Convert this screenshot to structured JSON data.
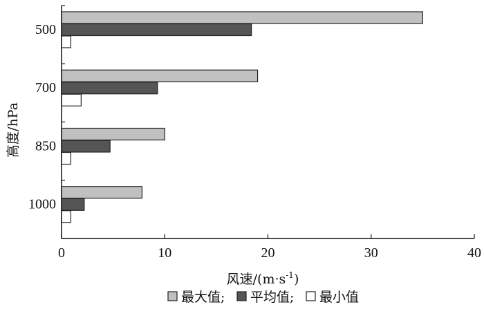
{
  "chart_data": {
    "type": "bar",
    "orientation": "horizontal",
    "categories": [
      "500",
      "700",
      "850",
      "1000"
    ],
    "series": [
      {
        "name": "最大值",
        "values": [
          35,
          19,
          10,
          7.8
        ],
        "color": "#c0c0c0"
      },
      {
        "name": "平均值",
        "values": [
          18.4,
          9.3,
          4.7,
          2.2
        ],
        "color": "#555555"
      },
      {
        "name": "最小值",
        "values": [
          0.9,
          1.9,
          0.9,
          0.9
        ],
        "color": "#ffffff"
      }
    ],
    "xlabel_main": "风速/(m·s",
    "xlabel_exp": "-1",
    "xlabel_tail": ")",
    "ylabel": "高度/hPa",
    "xlim": [
      0,
      40
    ],
    "xticks": [
      "0",
      "10",
      "20",
      "30",
      "40"
    ],
    "legend_position": "bottom",
    "legend_separator": ";",
    "grid": false
  }
}
